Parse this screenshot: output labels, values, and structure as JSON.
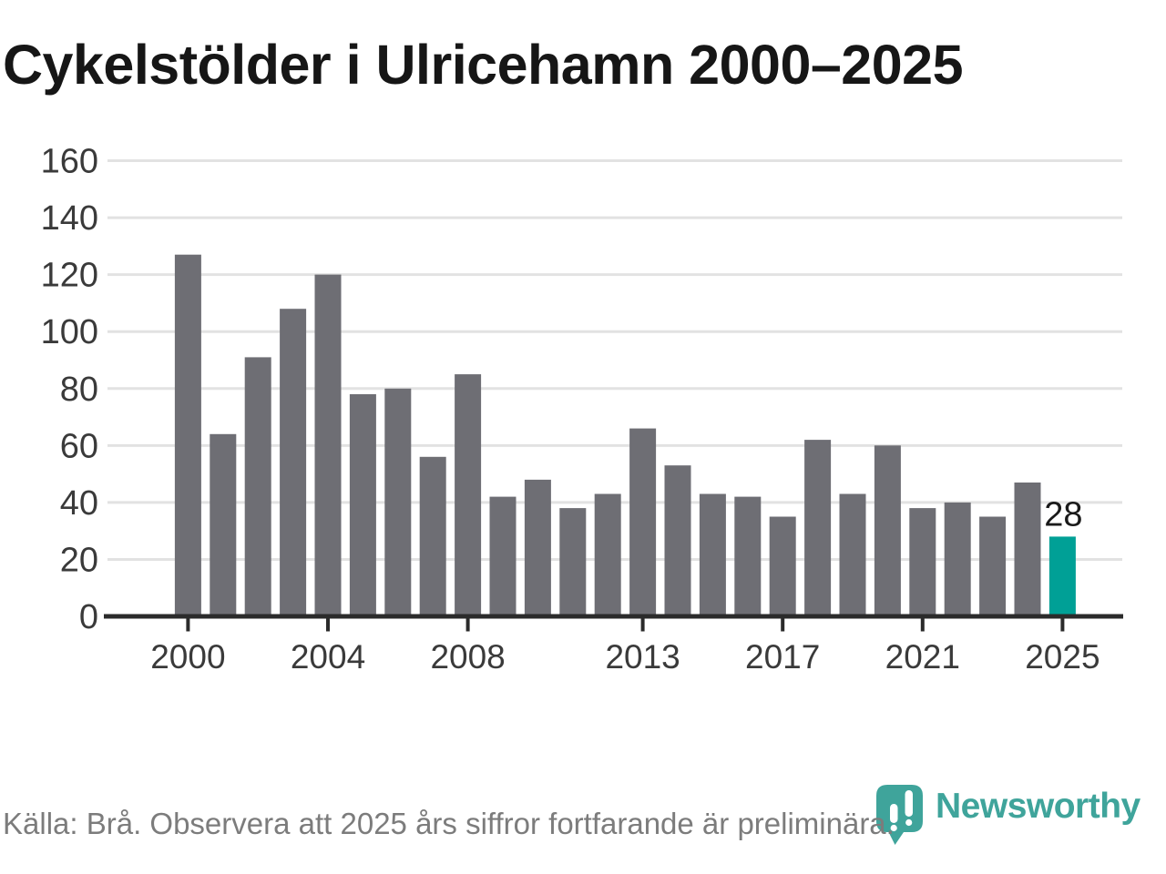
{
  "title": "Cykelstölder i Ulricehamn 2000–2025",
  "chart_data": {
    "type": "bar",
    "title": "Cykelstölder i Ulricehamn 2000–2025",
    "categories": [
      "2000",
      "2001",
      "2002",
      "2003",
      "2004",
      "2005",
      "2006",
      "2007",
      "2008",
      "2009",
      "2010",
      "2011",
      "2012",
      "2013",
      "2014",
      "2015",
      "2016",
      "2017",
      "2018",
      "2019",
      "2020",
      "2021",
      "2022",
      "2023",
      "2024",
      "2025"
    ],
    "values": [
      127,
      64,
      91,
      108,
      120,
      78,
      80,
      56,
      85,
      42,
      48,
      38,
      43,
      66,
      53,
      43,
      42,
      35,
      62,
      43,
      60,
      38,
      40,
      35,
      47,
      28
    ],
    "xlabel": "",
    "ylabel": "",
    "ylim": [
      0,
      160
    ],
    "yticks": [
      0,
      20,
      40,
      60,
      80,
      100,
      120,
      140,
      160
    ],
    "xticks_labeled": [
      "2000",
      "2004",
      "2008",
      "2013",
      "2017",
      "2021",
      "2025"
    ],
    "grid": true,
    "legend": "none",
    "highlight_index": 25,
    "last_value_label": "28"
  },
  "footer": {
    "source": "Källa: Brå. Observera att 2025 års siffror fortfarande är preliminära."
  },
  "logo": {
    "text": "Newsworthy"
  },
  "colors": {
    "bar": "#6e6e74",
    "highlight": "#00a096",
    "logo_teal": "#3fa49b",
    "grid": "#e2e2e2",
    "axis": "#2b2b2b",
    "annotation_text": "#1a1a1a",
    "tick_label": "#3a3a3a",
    "footer_text": "#7c7c7c",
    "title_text": "#161616"
  }
}
